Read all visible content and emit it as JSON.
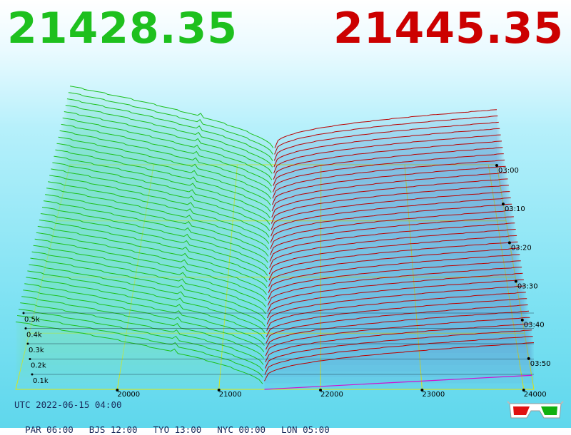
{
  "prices": {
    "bid": "21428.35",
    "ask": "21445.35"
  },
  "footer": {
    "utc": "UTC 2022-06-15 04:00",
    "zones": [
      "PAR 06:00",
      "BJS 12:00",
      "TYO 13:00",
      "NYC 00:00",
      "LON 05:00"
    ]
  },
  "colors": {
    "bid": "#1ec01e",
    "ask": "#bb0000",
    "grid": "#e8e800"
  },
  "glasses_icon": "3d-glasses-icon",
  "chart_data": {
    "type": "area",
    "x": [
      20000,
      21000,
      22000,
      23000,
      24000
    ],
    "x_tick_labels": [
      "20000",
      "21000",
      "22000",
      "23000",
      "24000"
    ],
    "y_tick_labels": [
      "03:00",
      "03:10",
      "03:20",
      "03:30",
      "03:40",
      "03:50"
    ],
    "z_tick_labels": [
      "0.1k",
      "0.2k",
      "0.3k",
      "0.4k",
      "0.5k"
    ],
    "xlim": [
      19000,
      24100
    ],
    "zlim": [
      0,
      0.55
    ],
    "grid": true,
    "series": [
      {
        "name": "bid",
        "mid_price": 21430,
        "slices": 38
      },
      {
        "name": "ask",
        "mid_price": 21448,
        "slices": 38
      }
    ]
  }
}
